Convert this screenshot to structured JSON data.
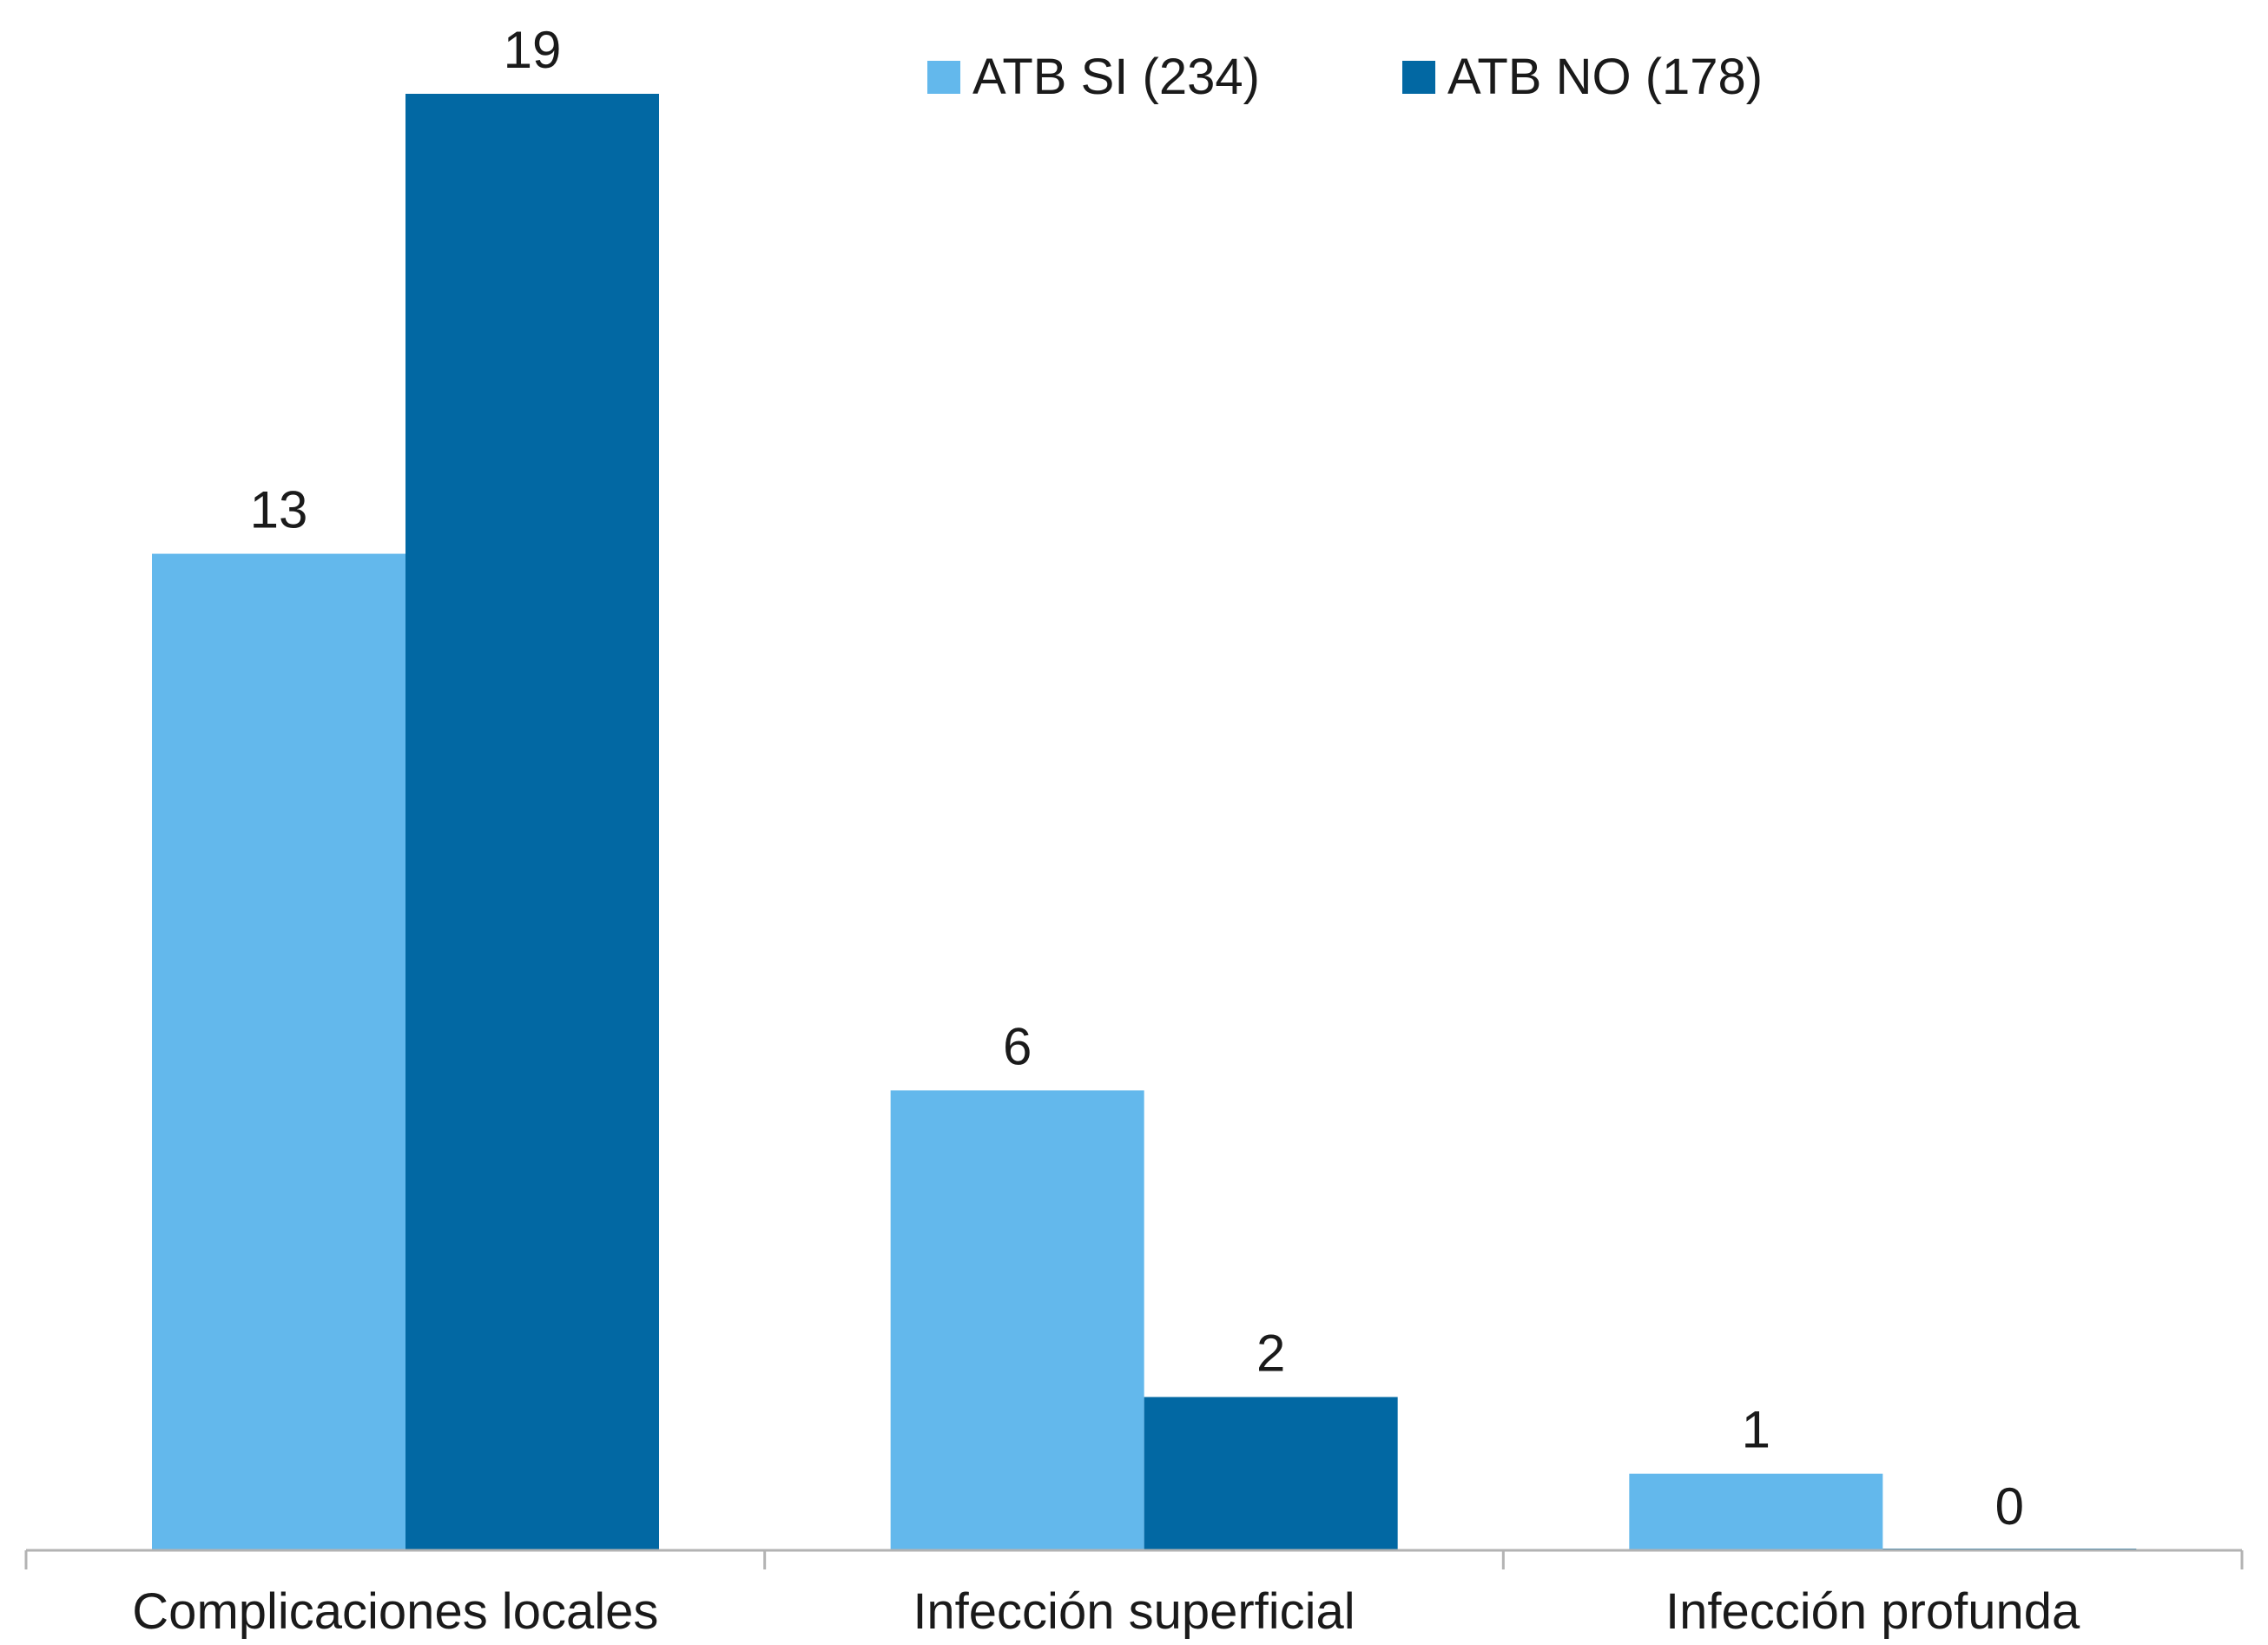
{
  "chart_data": {
    "type": "bar",
    "categories": [
      "Complicaciones locales",
      "Infección superficial",
      "Infección profunda"
    ],
    "series": [
      {
        "name": "ATB SI (234)",
        "values": [
          13,
          6,
          1
        ],
        "color": "#63b8ec"
      },
      {
        "name": "ATB NO (178)",
        "values": [
          19,
          2,
          0
        ],
        "color": "#0268a3"
      }
    ],
    "ylim": [
      0,
      19
    ],
    "data_labels": true,
    "grid": false,
    "legend_position": "top"
  }
}
